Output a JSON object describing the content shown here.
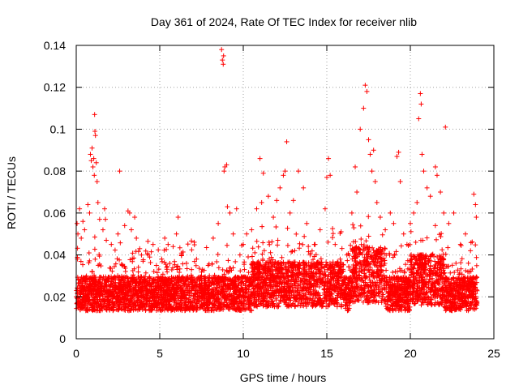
{
  "chart_data": {
    "type": "scatter",
    "title": "Day 361 of 2024, Rate Of TEC Index for receiver nlib",
    "xlabel": "GPS time / hours",
    "ylabel": "ROTI / TECUs",
    "xlim": [
      0,
      25
    ],
    "ylim": [
      0,
      0.14
    ],
    "x_ticks": [
      0,
      5,
      10,
      15,
      20,
      25
    ],
    "y_ticks": [
      0,
      0.02,
      0.04,
      0.06,
      0.08,
      0.1,
      0.12,
      0.14
    ],
    "x_tick_labels": [
      "0",
      "5",
      "10",
      "15",
      "20",
      "25"
    ],
    "y_tick_labels": [
      "0",
      "0.02",
      "0.04",
      "0.06",
      "0.08",
      "0.1",
      "0.12",
      "0.14"
    ],
    "grid": true,
    "marker": "+",
    "marker_color": "#ff0000",
    "series": [
      {
        "name": "ROTI",
        "points": [
          [
            0.05,
            0.055
          ],
          [
            0.1,
            0.05
          ],
          [
            0.2,
            0.062
          ],
          [
            0.3,
            0.048
          ],
          [
            0.4,
            0.056
          ],
          [
            0.5,
            0.052
          ],
          [
            0.7,
            0.064
          ],
          [
            0.8,
            0.06
          ],
          [
            0.85,
            0.088
          ],
          [
            0.9,
            0.085
          ],
          [
            0.95,
            0.091
          ],
          [
            1.0,
            0.082
          ],
          [
            1.05,
            0.086
          ],
          [
            1.08,
            0.078
          ],
          [
            1.1,
            0.107
          ],
          [
            1.12,
            0.099
          ],
          [
            1.15,
            0.097
          ],
          [
            1.2,
            0.084
          ],
          [
            1.25,
            0.075
          ],
          [
            1.3,
            0.065
          ],
          [
            1.4,
            0.057
          ],
          [
            1.6,
            0.052
          ],
          [
            1.7,
            0.062
          ],
          [
            1.75,
            0.057
          ],
          [
            1.8,
            0.047
          ],
          [
            2.1,
            0.045
          ],
          [
            2.5,
            0.05
          ],
          [
            2.6,
            0.08
          ],
          [
            2.9,
            0.054
          ],
          [
            3.1,
            0.061
          ],
          [
            3.2,
            0.06
          ],
          [
            3.3,
            0.052
          ],
          [
            3.5,
            0.058
          ],
          [
            3.6,
            0.048
          ],
          [
            3.8,
            0.043
          ],
          [
            4.0,
            0.037
          ],
          [
            4.3,
            0.04
          ],
          [
            4.6,
            0.045
          ],
          [
            4.8,
            0.035
          ],
          [
            5.3,
            0.048
          ],
          [
            5.5,
            0.045
          ],
          [
            5.8,
            0.044
          ],
          [
            6.0,
            0.05
          ],
          [
            6.1,
            0.058
          ],
          [
            6.3,
            0.04
          ],
          [
            6.6,
            0.036
          ],
          [
            6.9,
            0.033
          ],
          [
            7.2,
            0.038
          ],
          [
            7.5,
            0.03
          ],
          [
            7.9,
            0.035
          ],
          [
            8.2,
            0.048
          ],
          [
            8.5,
            0.055
          ],
          [
            8.7,
            0.138
          ],
          [
            8.75,
            0.133
          ],
          [
            8.8,
            0.131
          ],
          [
            8.82,
            0.135
          ],
          [
            8.85,
            0.08
          ],
          [
            8.9,
            0.082
          ],
          [
            9.0,
            0.083
          ],
          [
            9.05,
            0.063
          ],
          [
            9.2,
            0.06
          ],
          [
            9.4,
            0.05
          ],
          [
            9.6,
            0.062
          ],
          [
            9.8,
            0.04
          ],
          [
            10.0,
            0.045
          ],
          [
            10.2,
            0.05
          ],
          [
            10.5,
            0.052
          ],
          [
            10.8,
            0.062
          ],
          [
            11.0,
            0.086
          ],
          [
            11.1,
            0.065
          ],
          [
            11.2,
            0.079
          ],
          [
            11.5,
            0.068
          ],
          [
            11.8,
            0.058
          ],
          [
            12.0,
            0.066
          ],
          [
            12.2,
            0.072
          ],
          [
            12.4,
            0.078
          ],
          [
            12.5,
            0.08
          ],
          [
            12.6,
            0.094
          ],
          [
            12.8,
            0.06
          ],
          [
            13.0,
            0.066
          ],
          [
            13.3,
            0.08
          ],
          [
            13.6,
            0.072
          ],
          [
            13.8,
            0.055
          ],
          [
            14.0,
            0.04
          ],
          [
            14.3,
            0.045
          ],
          [
            14.6,
            0.052
          ],
          [
            14.9,
            0.062
          ],
          [
            15.0,
            0.077
          ],
          [
            15.1,
            0.086
          ],
          [
            15.2,
            0.078
          ],
          [
            15.5,
            0.045
          ],
          [
            15.8,
            0.038
          ],
          [
            16.2,
            0.04
          ],
          [
            16.5,
            0.06
          ],
          [
            16.7,
            0.082
          ],
          [
            16.8,
            0.07
          ],
          [
            17.0,
            0.1
          ],
          [
            17.2,
            0.11
          ],
          [
            17.3,
            0.121
          ],
          [
            17.4,
            0.118
          ],
          [
            17.5,
            0.095
          ],
          [
            17.6,
            0.088
          ],
          [
            17.7,
            0.08
          ],
          [
            17.8,
            0.09
          ],
          [
            17.9,
            0.075
          ],
          [
            18.0,
            0.065
          ],
          [
            18.2,
            0.058
          ],
          [
            18.5,
            0.052
          ],
          [
            18.8,
            0.06
          ],
          [
            19.0,
            0.055
          ],
          [
            19.2,
            0.087
          ],
          [
            19.3,
            0.089
          ],
          [
            19.4,
            0.075
          ],
          [
            19.6,
            0.05
          ],
          [
            19.8,
            0.045
          ],
          [
            20.0,
            0.055
          ],
          [
            20.2,
            0.06
          ],
          [
            20.4,
            0.065
          ],
          [
            20.5,
            0.105
          ],
          [
            20.6,
            0.117
          ],
          [
            20.65,
            0.112
          ],
          [
            20.7,
            0.088
          ],
          [
            20.8,
            0.08
          ],
          [
            21.0,
            0.072
          ],
          [
            21.2,
            0.068
          ],
          [
            21.5,
            0.082
          ],
          [
            21.6,
            0.078
          ],
          [
            21.8,
            0.07
          ],
          [
            22.0,
            0.06
          ],
          [
            22.1,
            0.101
          ],
          [
            22.3,
            0.055
          ],
          [
            22.6,
            0.06
          ],
          [
            23.0,
            0.045
          ],
          [
            23.3,
            0.05
          ],
          [
            23.6,
            0.042
          ],
          [
            23.8,
            0.069
          ],
          [
            23.9,
            0.064
          ],
          [
            23.95,
            0.058
          ]
        ]
      }
    ]
  }
}
